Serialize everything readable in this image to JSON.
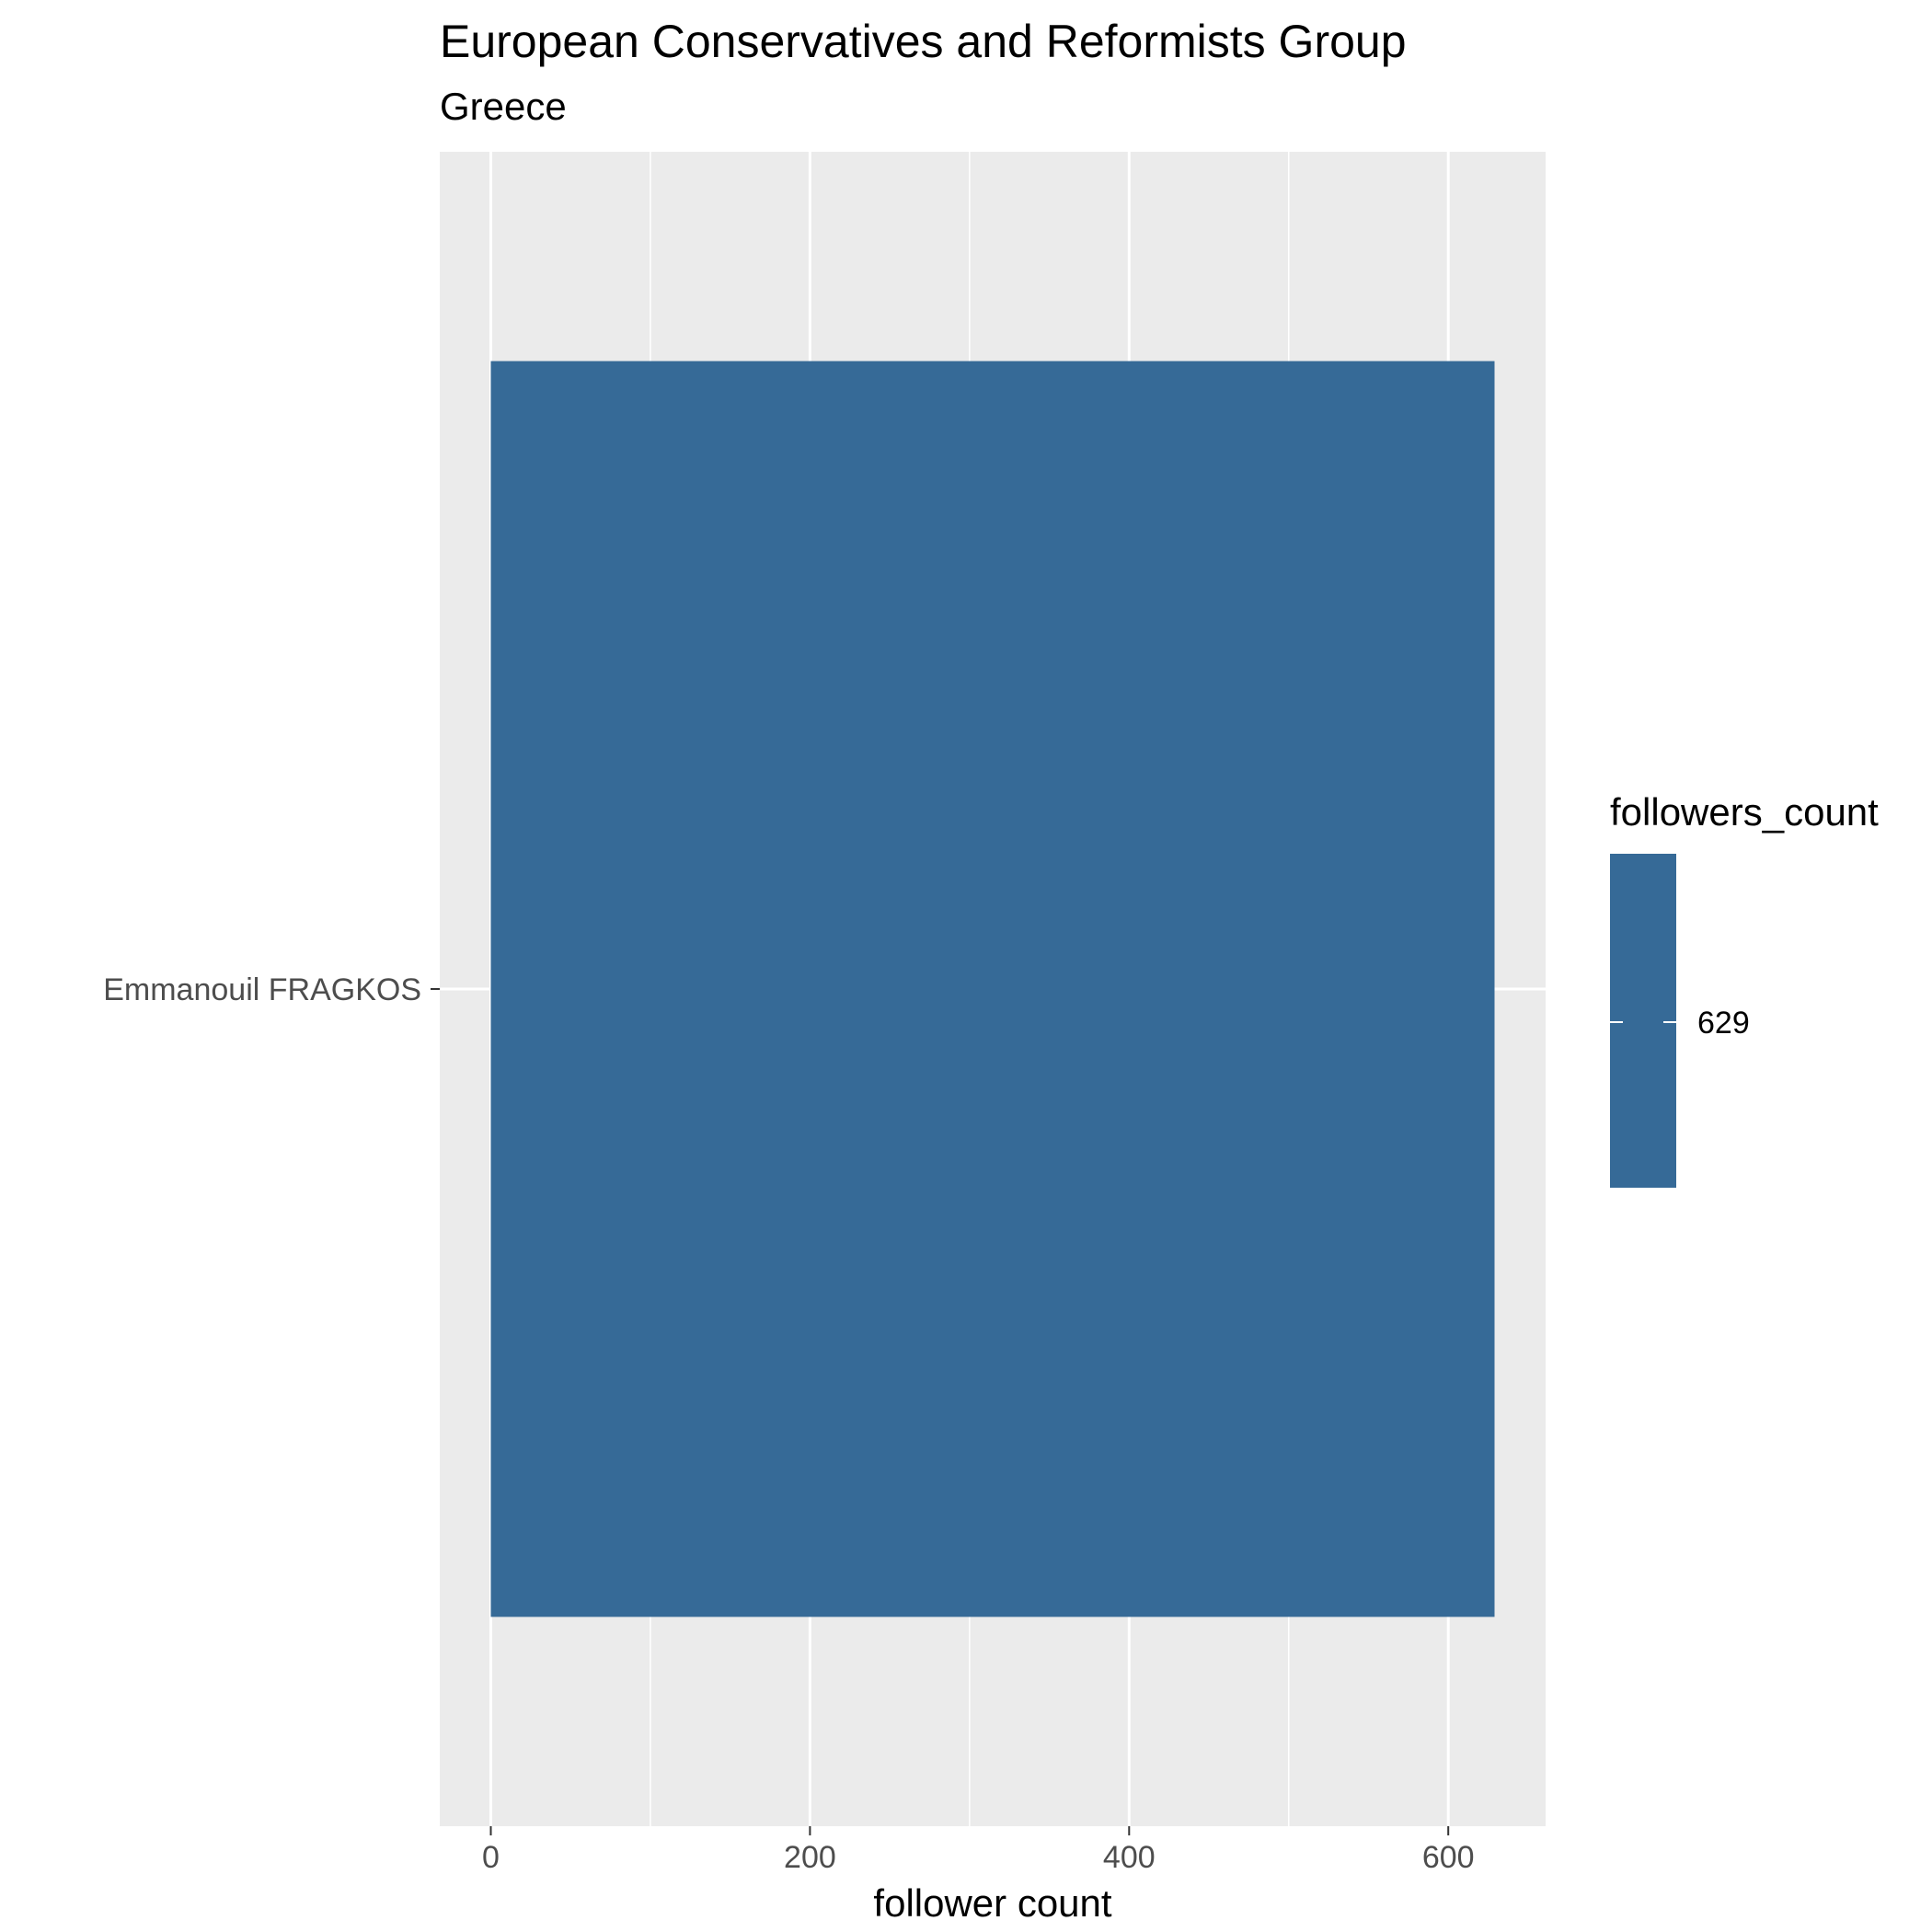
{
  "chart_data": {
    "type": "bar",
    "orientation": "horizontal",
    "title": "European Conservatives and Reformists Group",
    "subtitle": "Greece",
    "xlabel": "follower count",
    "ylabel": "",
    "categories": [
      "Emmanouil FRAGKOS"
    ],
    "values": [
      629
    ],
    "xlim": [
      -32,
      661
    ],
    "x_ticks": [
      0,
      200,
      400,
      600
    ],
    "grid": true,
    "legend": {
      "title": "followers_count",
      "labels": [
        "629"
      ],
      "placement": "right"
    },
    "colors": {
      "bar": "#366a97",
      "panel_background": "#ebebeb",
      "grid_line": "#ffffff"
    }
  }
}
